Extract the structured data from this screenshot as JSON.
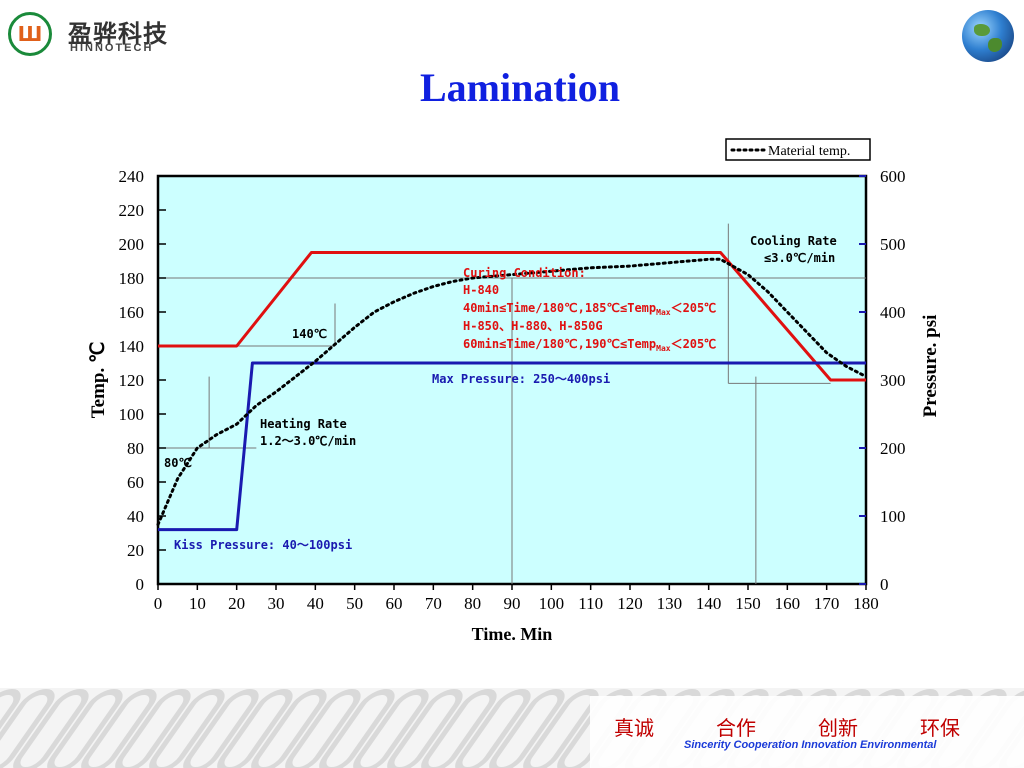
{
  "header": {
    "logo_cn": "盈骅科技",
    "logo_en": "HINNOTECH",
    "title": "Lamination"
  },
  "footer": {
    "slogan_cn": [
      "真诚",
      "合作",
      "创新",
      "环保"
    ],
    "slogan_en": "Sincerity Cooperation Innovation Environmental"
  },
  "colors": {
    "title": "#1020e0",
    "plot_bg": "#ccffff",
    "temp_line": "#e01010",
    "pressure_line": "#1a1ab0",
    "material_line": "#000000",
    "annotation_red": "#e01010",
    "annotation_blue": "#1a1ab0",
    "slogan_cn": "#c00000",
    "slogan_en": "#1a3ad8"
  },
  "chart_data": {
    "type": "line",
    "xlabel": "Time. Min",
    "ylabel": "Temp. ℃",
    "y2label": "Pressure. psi",
    "xlim": [
      0,
      180
    ],
    "ylim": [
      0,
      240
    ],
    "y2lim": [
      0,
      600
    ],
    "x_ticks": [
      0,
      10,
      20,
      30,
      40,
      50,
      60,
      70,
      80,
      90,
      100,
      110,
      120,
      130,
      140,
      150,
      160,
      170,
      180
    ],
    "y_ticks": [
      0,
      20,
      40,
      60,
      80,
      100,
      120,
      140,
      160,
      180,
      200,
      220,
      240
    ],
    "y2_ticks": [
      0,
      100,
      200,
      300,
      400,
      500,
      600
    ],
    "legend": {
      "position": "top-right",
      "label": "Material temp."
    },
    "series": [
      {
        "key": "temp_setpoint",
        "axis": "left",
        "style": "solid-red",
        "x": [
          0,
          20,
          39,
          143,
          171,
          180
        ],
        "y": [
          140,
          140,
          195,
          195,
          120,
          120
        ]
      },
      {
        "key": "pressure",
        "axis": "right",
        "style": "solid-blue",
        "x": [
          0,
          20,
          24,
          180
        ],
        "y": [
          80,
          80,
          325,
          325
        ]
      },
      {
        "name": "Material temp.",
        "axis": "left",
        "style": "dotted",
        "x": [
          0,
          5,
          10,
          15,
          20,
          25,
          30,
          35,
          40,
          45,
          50,
          55,
          60,
          65,
          70,
          75,
          80,
          90,
          100,
          110,
          120,
          130,
          140,
          143,
          150,
          155,
          160,
          165,
          170,
          175,
          180
        ],
        "y": [
          35,
          62,
          80,
          88,
          94,
          105,
          113,
          122,
          131,
          141,
          151,
          160,
          166,
          171,
          175,
          178,
          180,
          182,
          184,
          186,
          187,
          189,
          191,
          191,
          182,
          172,
          160,
          148,
          136,
          128,
          122
        ]
      }
    ],
    "annotations": [
      {
        "key": "curing_1",
        "text": "Curing Condition:",
        "color": "red"
      },
      {
        "key": "curing_2",
        "text": "H-840",
        "color": "red"
      },
      {
        "key": "curing_3",
        "text": "40min≤Time/180℃,185℃≤Temp",
        "sub": "Max",
        "tail": "＜205℃",
        "color": "red"
      },
      {
        "key": "curing_4",
        "text": "H-850、H-880、H-850G",
        "color": "red"
      },
      {
        "key": "curing_5",
        "text": "60min≤Time/180℃,190℃≤Temp",
        "sub": "Max",
        "tail": "＜205℃",
        "color": "red"
      },
      {
        "key": "cooling_1",
        "text": "Cooling Rate",
        "color": "black"
      },
      {
        "key": "cooling_2",
        "text": "≤3.0℃/min",
        "color": "black"
      },
      {
        "key": "heating_1",
        "text": "Heating Rate",
        "color": "black"
      },
      {
        "key": "heating_2",
        "text": "1.2～3.0℃/min",
        "color": "black"
      },
      {
        "key": "t140",
        "text": "140℃",
        "color": "black"
      },
      {
        "key": "t80",
        "text": "80℃",
        "color": "black"
      },
      {
        "key": "max_pressure",
        "text": "Max Pressure: 250～400psi",
        "color": "blue"
      },
      {
        "key": "kiss_pressure",
        "text": "Kiss Pressure: 40～100psi",
        "color": "blue"
      }
    ]
  }
}
